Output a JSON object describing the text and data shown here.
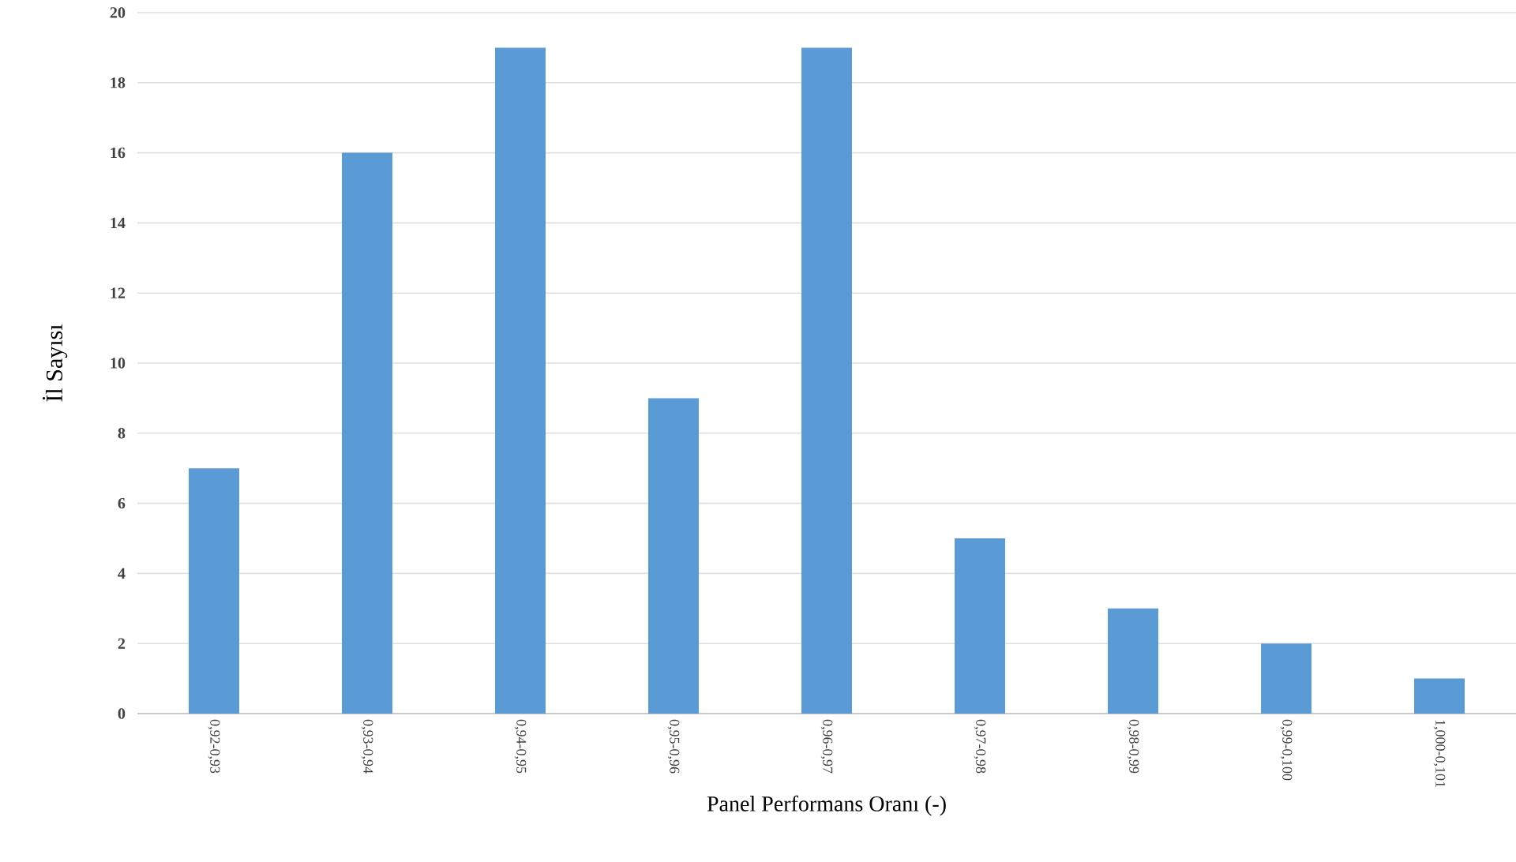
{
  "chart_data": {
    "type": "bar",
    "xlabel": "Panel Performans Oranı (-)",
    "ylabel": "İl Sayısı",
    "categories": [
      "0,92-0,93",
      "0,93-0,94",
      "0,94-0,95",
      "0,95-0,96",
      "0,96-0,97",
      "0,97-0,98",
      "0,98-0,99",
      "0,99-0,100",
      "1,000-0,101"
    ],
    "values": [
      7,
      16,
      19,
      9,
      19,
      5,
      3,
      2,
      1
    ],
    "color": "#5b9bd5",
    "ylim": [
      0,
      20
    ],
    "yticks": [
      0,
      2,
      4,
      6,
      8,
      10,
      12,
      14,
      16,
      18,
      20
    ],
    "grid": "y"
  }
}
